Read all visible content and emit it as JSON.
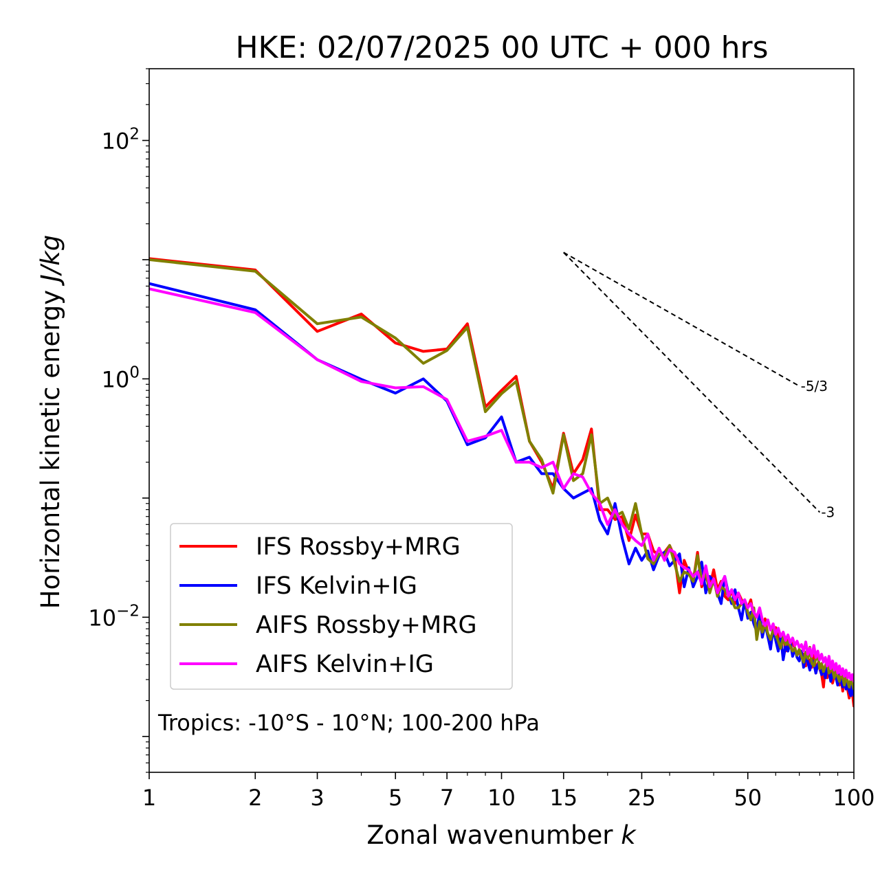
{
  "chart_data": {
    "type": "line",
    "title": "HKE: 02/07/2025 00 UTC + 000 hrs",
    "xlabel": "Zonal wavenumber",
    "xlabel_var": "k",
    "ylabel": "Horizontal kinetic energy",
    "ylabel_unit": "J/kg",
    "xscale": "log",
    "yscale": "log",
    "xlim": [
      1,
      100
    ],
    "ylim": [
      0.0005,
      400
    ],
    "xticks": [
      {
        "value": 1,
        "label": "1"
      },
      {
        "value": 2,
        "label": "2"
      },
      {
        "value": 3,
        "label": "3"
      },
      {
        "value": 5,
        "label": "5"
      },
      {
        "value": 7,
        "label": "7"
      },
      {
        "value": 10,
        "label": "10"
      },
      {
        "value": 15,
        "label": "15"
      },
      {
        "value": 25,
        "label": "25"
      },
      {
        "value": 50,
        "label": "50"
      },
      {
        "value": 100,
        "label": "100"
      }
    ],
    "yticks": [
      {
        "value": 100,
        "base": "10",
        "exp": "2"
      },
      {
        "value": 1,
        "base": "10",
        "exp": "0"
      },
      {
        "value": 0.01,
        "base": "10",
        "exp": "−2"
      }
    ],
    "annotation": "Tropics: -10°S - 10°N; 100-200 hPa",
    "legend_position": "lower-left",
    "reference_lines": [
      {
        "label": "-5/3",
        "slope": -1.6667,
        "x": [
          15,
          70
        ],
        "y": [
          11.5,
          0.87
        ]
      },
      {
        "label": "-3",
        "slope": -3,
        "x": [
          15,
          80
        ],
        "y": [
          11.5,
          0.076
        ]
      }
    ],
    "series": [
      {
        "name": "IFS Rossby+MRG",
        "color": "#ff0000",
        "x": [
          1,
          2,
          3,
          4,
          5,
          6,
          7,
          8,
          9,
          10,
          11,
          12,
          13,
          14,
          15,
          16,
          17,
          18,
          19,
          20,
          21,
          22,
          23,
          24,
          25,
          26,
          27,
          28,
          29,
          30,
          31,
          32,
          33,
          34,
          35,
          36,
          37,
          38,
          39,
          40,
          41,
          42,
          43,
          44,
          45,
          46,
          47,
          48,
          49,
          50,
          51,
          52,
          53,
          54,
          55,
          56,
          57,
          58,
          59,
          60,
          61,
          62,
          63,
          64,
          65,
          66,
          67,
          68,
          69,
          70,
          71,
          72,
          73,
          74,
          75,
          76,
          77,
          78,
          79,
          80,
          81,
          82,
          83,
          84,
          85,
          86,
          87,
          88,
          89,
          90,
          91,
          92,
          93,
          94,
          95,
          96,
          97,
          98,
          99,
          100
        ],
        "y": [
          10.2,
          8.2,
          2.5,
          3.5,
          2.0,
          1.7,
          1.78,
          2.9,
          0.58,
          0.8,
          1.05,
          0.3,
          0.2,
          0.12,
          0.35,
          0.16,
          0.21,
          0.38,
          0.08,
          0.08,
          0.066,
          0.07,
          0.044,
          0.072,
          0.05,
          0.05,
          0.036,
          0.033,
          0.035,
          0.04,
          0.032,
          0.016,
          0.03,
          0.024,
          0.02,
          0.035,
          0.018,
          0.022,
          0.018,
          0.025,
          0.017,
          0.02,
          0.015,
          0.014,
          0.017,
          0.013,
          0.016,
          0.014,
          0.012,
          0.012,
          0.014,
          0.0098,
          0.0082,
          0.0092,
          0.0071,
          0.0097,
          0.0071,
          0.0061,
          0.0075,
          0.0082,
          0.0069,
          0.0059,
          0.0073,
          0.0052,
          0.0065,
          0.0059,
          0.0062,
          0.0055,
          0.0048,
          0.0052,
          0.0046,
          0.0049,
          0.0039,
          0.0045,
          0.0043,
          0.0038,
          0.0048,
          0.0034,
          0.0041,
          0.0037,
          0.0033,
          0.0026,
          0.0039,
          0.0031,
          0.0037,
          0.0034,
          0.0028,
          0.0032,
          0.0035,
          0.0034,
          0.0027,
          0.0031,
          0.0024,
          0.0032,
          0.0028,
          0.0025,
          0.0021,
          0.0026,
          0.0023,
          0.0018
        ]
      },
      {
        "name": "IFS Kelvin+IG",
        "color": "#0000ff",
        "x": [
          1,
          2,
          3,
          4,
          5,
          6,
          7,
          8,
          9,
          10,
          11,
          12,
          13,
          14,
          15,
          16,
          17,
          18,
          19,
          20,
          21,
          22,
          23,
          24,
          25,
          26,
          27,
          28,
          29,
          30,
          31,
          32,
          33,
          34,
          35,
          36,
          37,
          38,
          39,
          40,
          41,
          42,
          43,
          44,
          45,
          46,
          47,
          48,
          49,
          50,
          51,
          52,
          53,
          54,
          55,
          56,
          57,
          58,
          59,
          60,
          61,
          62,
          63,
          64,
          65,
          66,
          67,
          68,
          69,
          70,
          71,
          72,
          73,
          74,
          75,
          76,
          77,
          78,
          79,
          80,
          81,
          82,
          83,
          84,
          85,
          86,
          87,
          88,
          89,
          90,
          91,
          92,
          93,
          94,
          95,
          96,
          97,
          98,
          99,
          100
        ],
        "y": [
          6.3,
          3.8,
          1.45,
          0.99,
          0.76,
          1.0,
          0.65,
          0.28,
          0.32,
          0.48,
          0.2,
          0.22,
          0.16,
          0.16,
          0.12,
          0.1,
          0.11,
          0.12,
          0.065,
          0.05,
          0.09,
          0.046,
          0.028,
          0.038,
          0.03,
          0.036,
          0.025,
          0.033,
          0.035,
          0.027,
          0.03,
          0.034,
          0.018,
          0.026,
          0.018,
          0.022,
          0.029,
          0.016,
          0.022,
          0.02,
          0.016,
          0.013,
          0.022,
          0.016,
          0.013,
          0.017,
          0.012,
          0.0095,
          0.014,
          0.0098,
          0.011,
          0.0088,
          0.0076,
          0.011,
          0.0068,
          0.0088,
          0.0069,
          0.0054,
          0.0081,
          0.0064,
          0.0052,
          0.0069,
          0.0044,
          0.0058,
          0.0052,
          0.0063,
          0.0047,
          0.0055,
          0.0046,
          0.0043,
          0.0052,
          0.0038,
          0.0048,
          0.0042,
          0.0036,
          0.0044,
          0.0041,
          0.0034,
          0.004,
          0.0038,
          0.0033,
          0.0037,
          0.0031,
          0.0039,
          0.0035,
          0.0029,
          0.0034,
          0.0038,
          0.0031,
          0.0027,
          0.0033,
          0.0029,
          0.0026,
          0.003,
          0.0025,
          0.0028,
          0.0024,
          0.0022,
          0.0027,
          0.0022
        ]
      },
      {
        "name": "AIFS Rossby+MRG",
        "color": "#808000",
        "x": [
          1,
          2,
          3,
          4,
          5,
          6,
          7,
          8,
          9,
          10,
          11,
          12,
          13,
          14,
          15,
          16,
          17,
          18,
          19,
          20,
          21,
          22,
          23,
          24,
          25,
          26,
          27,
          28,
          29,
          30,
          31,
          32,
          33,
          34,
          35,
          36,
          37,
          38,
          39,
          40,
          41,
          42,
          43,
          44,
          45,
          46,
          47,
          48,
          49,
          50,
          51,
          52,
          53,
          54,
          55,
          56,
          57,
          58,
          59,
          60,
          61,
          62,
          63,
          64,
          65,
          66,
          67,
          68,
          69,
          70,
          71,
          72,
          73,
          74,
          75,
          76,
          77,
          78,
          79,
          80,
          81,
          82,
          83,
          84,
          85,
          86,
          87,
          88,
          89,
          90,
          91,
          92,
          93,
          94,
          95,
          96,
          97,
          98,
          99,
          100
        ],
        "y": [
          10.0,
          8.0,
          2.9,
          3.3,
          2.2,
          1.35,
          1.73,
          2.7,
          0.53,
          0.75,
          0.95,
          0.3,
          0.21,
          0.11,
          0.34,
          0.14,
          0.16,
          0.34,
          0.09,
          0.1,
          0.07,
          0.076,
          0.055,
          0.09,
          0.05,
          0.031,
          0.028,
          0.034,
          0.033,
          0.04,
          0.028,
          0.02,
          0.024,
          0.023,
          0.02,
          0.033,
          0.02,
          0.024,
          0.016,
          0.021,
          0.015,
          0.018,
          0.017,
          0.015,
          0.014,
          0.012,
          0.012,
          0.013,
          0.014,
          0.011,
          0.0095,
          0.012,
          0.0065,
          0.0092,
          0.0075,
          0.0088,
          0.0073,
          0.0065,
          0.0079,
          0.0071,
          0.0063,
          0.0055,
          0.0068,
          0.0059,
          0.0062,
          0.0057,
          0.0052,
          0.0055,
          0.0048,
          0.0054,
          0.0047,
          0.0042,
          0.0051,
          0.0045,
          0.0056,
          0.0041,
          0.0039,
          0.0045,
          0.0048,
          0.0037,
          0.0041,
          0.0035,
          0.0039,
          0.0043,
          0.0034,
          0.0038,
          0.0036,
          0.0031,
          0.0035,
          0.0032,
          0.0029,
          0.0034,
          0.0031,
          0.0027,
          0.0032,
          0.0029,
          0.0026,
          0.003,
          0.0028,
          0.0025
        ]
      },
      {
        "name": "AIFS Kelvin+IG",
        "color": "#ff00ff",
        "x": [
          1,
          2,
          3,
          4,
          5,
          6,
          7,
          8,
          9,
          10,
          11,
          12,
          13,
          14,
          15,
          16,
          17,
          18,
          19,
          20,
          21,
          22,
          23,
          24,
          25,
          26,
          27,
          28,
          29,
          30,
          31,
          32,
          33,
          34,
          35,
          36,
          37,
          38,
          39,
          40,
          41,
          42,
          43,
          44,
          45,
          46,
          47,
          48,
          49,
          50,
          51,
          52,
          53,
          54,
          55,
          56,
          57,
          58,
          59,
          60,
          61,
          62,
          63,
          64,
          65,
          66,
          67,
          68,
          69,
          70,
          71,
          72,
          73,
          74,
          75,
          76,
          77,
          78,
          79,
          80,
          81,
          82,
          83,
          84,
          85,
          86,
          87,
          88,
          89,
          90,
          91,
          92,
          93,
          94,
          95,
          96,
          97,
          98,
          99,
          100
        ],
        "y": [
          5.7,
          3.6,
          1.45,
          0.95,
          0.84,
          0.86,
          0.67,
          0.3,
          0.33,
          0.37,
          0.2,
          0.2,
          0.18,
          0.2,
          0.12,
          0.16,
          0.15,
          0.11,
          0.09,
          0.06,
          0.08,
          0.06,
          0.05,
          0.044,
          0.04,
          0.05,
          0.03,
          0.038,
          0.03,
          0.037,
          0.035,
          0.028,
          0.026,
          0.025,
          0.022,
          0.024,
          0.019,
          0.027,
          0.018,
          0.021,
          0.016,
          0.019,
          0.022,
          0.015,
          0.017,
          0.014,
          0.016,
          0.013,
          0.014,
          0.012,
          0.013,
          0.011,
          0.01,
          0.012,
          0.0095,
          0.0085,
          0.0095,
          0.0078,
          0.0088,
          0.0072,
          0.0081,
          0.0069,
          0.0075,
          0.0064,
          0.0071,
          0.0061,
          0.0067,
          0.0058,
          0.0063,
          0.0056,
          0.0059,
          0.0052,
          0.0062,
          0.0049,
          0.0055,
          0.0047,
          0.0058,
          0.0046,
          0.0052,
          0.0044,
          0.0049,
          0.0042,
          0.0046,
          0.0039,
          0.0047,
          0.0037,
          0.0043,
          0.0036,
          0.0041,
          0.0034,
          0.0039,
          0.0033,
          0.0037,
          0.0032,
          0.0036,
          0.0031,
          0.0034,
          0.003,
          0.0033,
          0.0029
        ]
      }
    ]
  }
}
